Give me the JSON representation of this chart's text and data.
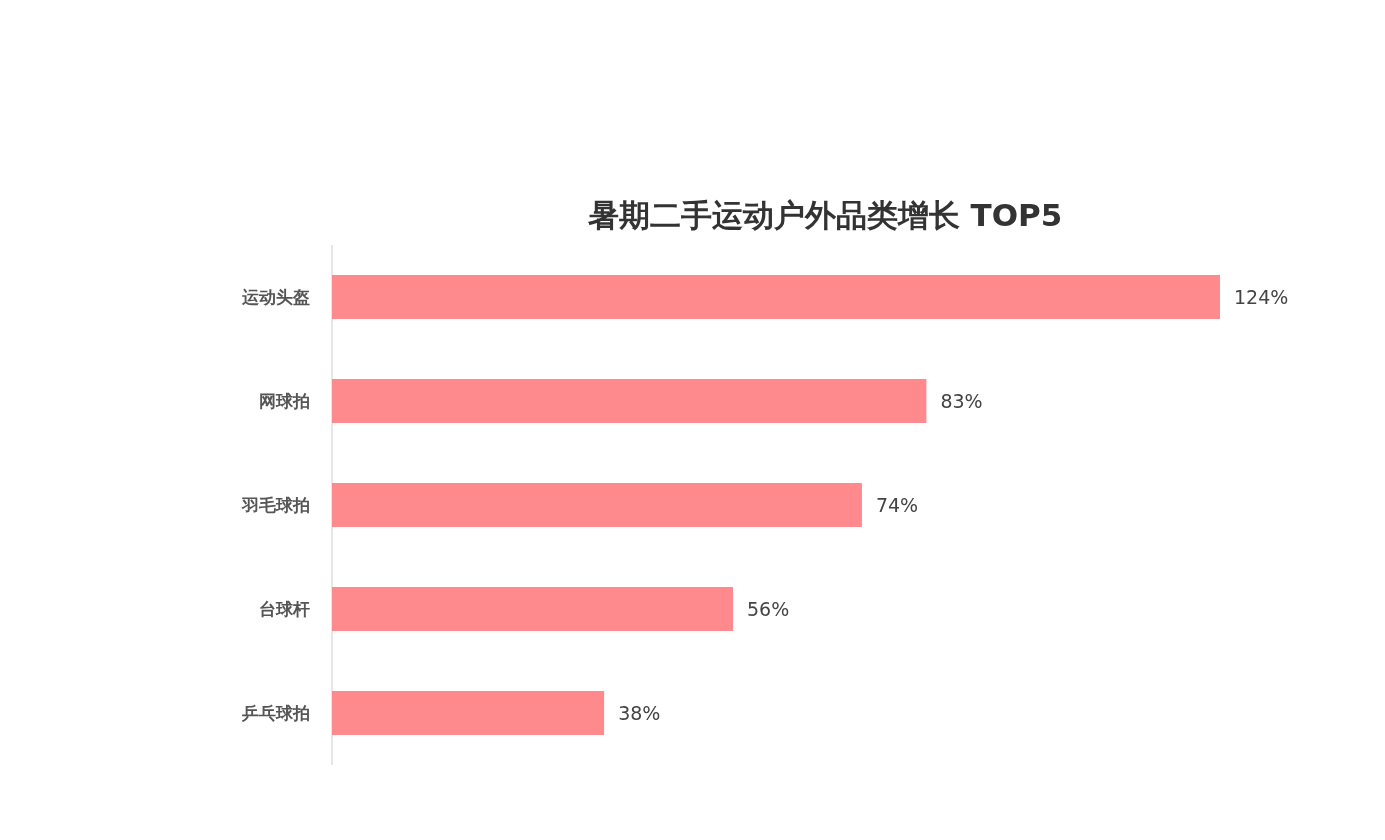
{
  "chart_data": {
    "type": "bar",
    "orientation": "horizontal",
    "title": "暑期二手运动户外品类增长 TOP5",
    "categories": [
      "运动头盔",
      "网球拍",
      "羽毛球拍",
      "台球杆",
      "乒乓球拍"
    ],
    "values": [
      124,
      83,
      74,
      56,
      38
    ],
    "value_labels": [
      "124%",
      "83%",
      "74%",
      "56%",
      "38%"
    ],
    "color": "#ff8a8e"
  }
}
